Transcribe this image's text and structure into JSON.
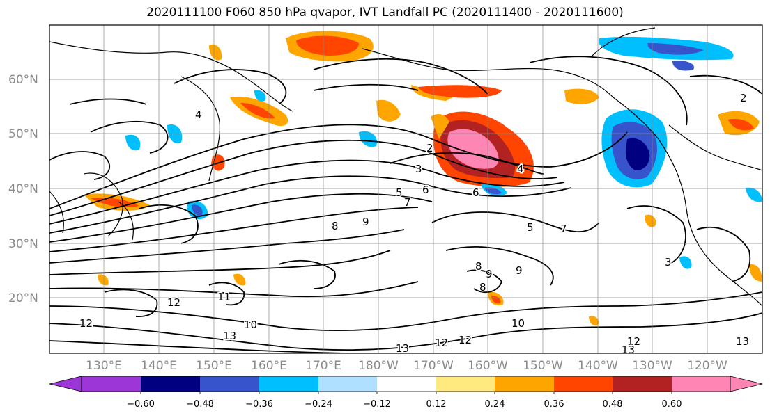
{
  "title": "2020111100 F060 850 hPa qvapor, IVT Landfall PC (2020111400 - 2020111600)",
  "map": {
    "lat_labels": [
      "60°N",
      "50°N",
      "40°N",
      "30°N",
      "20°N"
    ],
    "lon_labels": [
      "130°E",
      "140°E",
      "150°E",
      "160°E",
      "170°E",
      "180°W",
      "170°W",
      "160°W",
      "150°W",
      "140°W",
      "130°W",
      "120°W"
    ],
    "contour_labels": [
      "2",
      "3",
      "4",
      "4",
      "5",
      "6",
      "7",
      "8",
      "9",
      "5",
      "7",
      "8",
      "9",
      "9",
      "8",
      "12",
      "12",
      "11",
      "10",
      "13",
      "13",
      "12",
      "12",
      "13",
      "12",
      "13",
      "10",
      "2",
      "3",
      "6"
    ]
  },
  "colorbar": {
    "colors": [
      "#9c36d6",
      "#000080",
      "#3754cc",
      "#00bfff",
      "#b0e0ff",
      "#ffffff",
      "#ffea80",
      "#ffa500",
      "#ff4500",
      "#b22222",
      "#ff85b4"
    ],
    "tick_labels": [
      "−0.60",
      "−0.48",
      "−0.36",
      "−0.24",
      "−0.12",
      "0.12",
      "0.24",
      "0.36",
      "0.48",
      "0.60"
    ]
  }
}
